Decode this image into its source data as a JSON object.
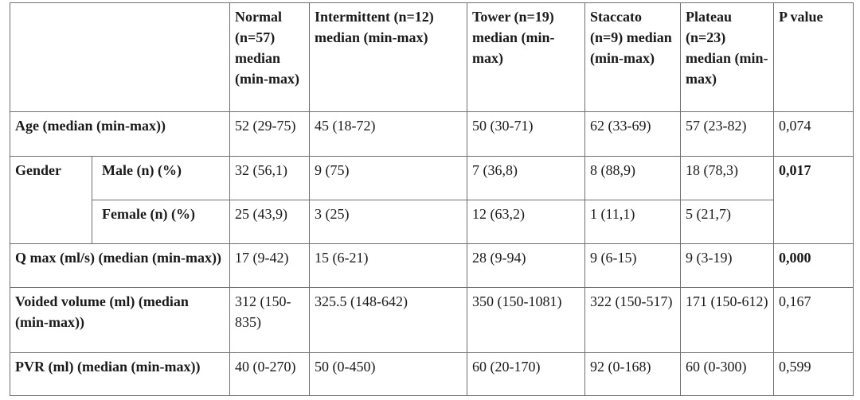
{
  "header": {
    "normal": "Normal (n=57) median (min-max)",
    "intermittent": "Intermittent (n=12) median (min-max)",
    "tower": "Tower (n=19) median (min-max)",
    "staccato": "Staccato (n=9) median (min-max)",
    "plateau": "Plateau (n=23) median (min-max)",
    "p_value": "P value"
  },
  "rows": {
    "age": {
      "label": "Age (median (min-max))",
      "normal": "52 (29-75)",
      "intermittent": "45 (18-72)",
      "tower": "50 (30-71)",
      "staccato": "62 (33-69)",
      "plateau": "57 (23-82)",
      "p": "0,074"
    },
    "gender": {
      "label": "Gender",
      "p": "0,017",
      "male": {
        "label": "Male (n) (%)",
        "normal": "32 (56,1)",
        "intermittent": "9 (75)",
        "tower": "7 (36,8)",
        "staccato": "8 (88,9)",
        "plateau": "18 (78,3)"
      },
      "female": {
        "label": "Female (n) (%)",
        "normal": "25 (43,9)",
        "intermittent": "3 (25)",
        "tower": "12 (63,2)",
        "staccato": "1 (11,1)",
        "plateau": "5 (21,7)"
      }
    },
    "qmax": {
      "label": "Q max (ml/s) (median (min-max))",
      "normal": "17 (9-42)",
      "intermittent": "15 (6-21)",
      "tower": "28 (9-94)",
      "staccato": "9 (6-15)",
      "plateau": "9 (3-19)",
      "p": "0,000"
    },
    "voided": {
      "label": "Voided volume (ml) (median (min-max))",
      "normal": "312 (150-835)",
      "intermittent": "325.5 (148-642)",
      "tower": "350 (150-1081)",
      "staccato": "322 (150-517)",
      "plateau": "171 (150-612)",
      "p": "0,167"
    },
    "pvr": {
      "label": "PVR (ml) (median (min-max))",
      "normal": "40 (0-270)",
      "intermittent": "50 (0-450)",
      "tower": "60 (20-170)",
      "staccato": "92 (0-168)",
      "plateau": "60 (0-300)",
      "p": "0,599"
    }
  }
}
